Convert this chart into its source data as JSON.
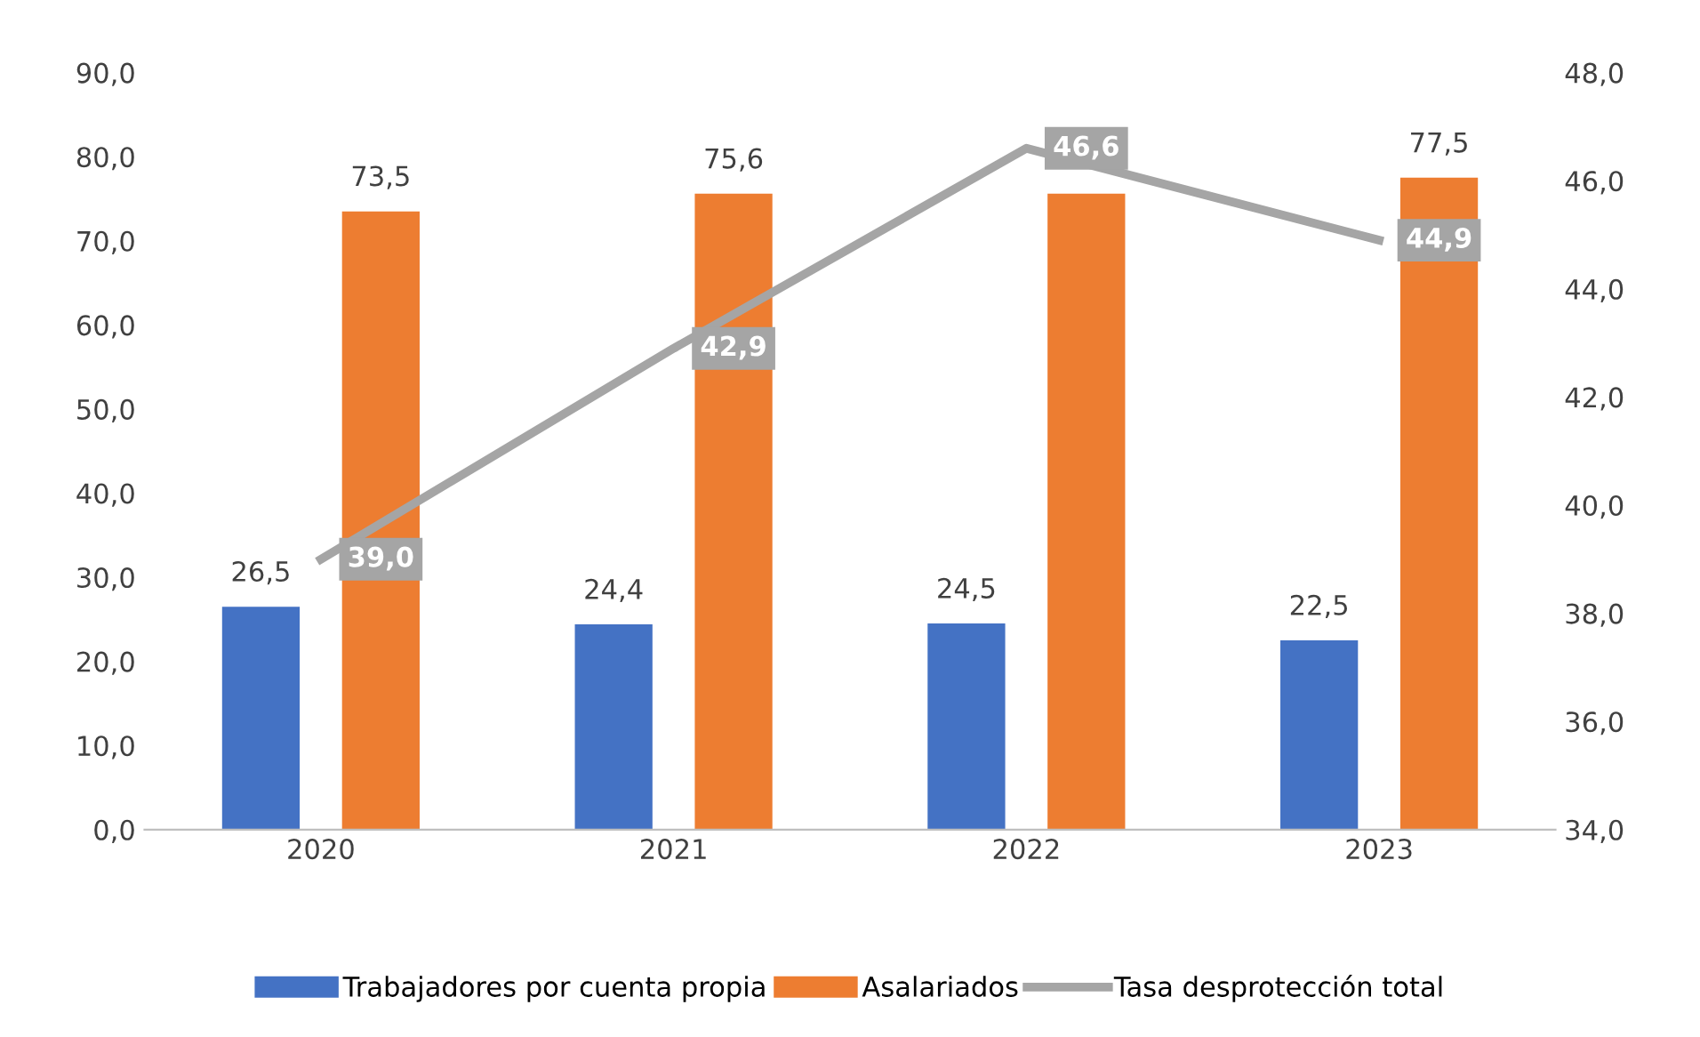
{
  "chart_data": {
    "type": "bar",
    "categories": [
      "2020",
      "2021",
      "2022",
      "2023"
    ],
    "series": [
      {
        "name": "Trabajadores por cuenta propia",
        "color": "#4472c4",
        "values": [
          26.5,
          24.4,
          24.5,
          22.5
        ],
        "value_labels": [
          "26,5",
          "24,4",
          "24,5",
          "22,5"
        ]
      },
      {
        "name": "Asalariados",
        "color": "#ed7d31",
        "values": [
          73.5,
          75.6,
          75.6,
          77.5
        ],
        "value_labels": [
          "73,5",
          "75,6",
          null,
          "77,5"
        ]
      },
      {
        "name": "Tasa desprotección total",
        "type": "line",
        "axis": "y2",
        "color": "#a5a5a5",
        "values": [
          39.0,
          42.9,
          46.6,
          44.9
        ],
        "value_labels": [
          "39,0",
          "42,9",
          "46,6",
          "44,9"
        ]
      }
    ],
    "ylim": [
      0,
      90
    ],
    "yticks": [
      {
        "value": 0,
        "label": "0,0"
      },
      {
        "value": 10,
        "label": "10,0"
      },
      {
        "value": 20,
        "label": "20,0"
      },
      {
        "value": 30,
        "label": "30,0"
      },
      {
        "value": 40,
        "label": "40,0"
      },
      {
        "value": 50,
        "label": "50,0"
      },
      {
        "value": 60,
        "label": "60,0"
      },
      {
        "value": 70,
        "label": "70,0"
      },
      {
        "value": 80,
        "label": "80,0"
      },
      {
        "value": 90,
        "label": "90,0"
      }
    ],
    "y2lim": [
      34,
      48
    ],
    "y2ticks": [
      {
        "value": 34,
        "label": "34,0"
      },
      {
        "value": 36,
        "label": "36,0"
      },
      {
        "value": 38,
        "label": "38,0"
      },
      {
        "value": 40,
        "label": "40,0"
      },
      {
        "value": 42,
        "label": "42,0"
      },
      {
        "value": 44,
        "label": "44,0"
      },
      {
        "value": 46,
        "label": "46,0"
      },
      {
        "value": 48,
        "label": "48,0"
      }
    ],
    "grid": false,
    "legend": "bottom",
    "marker": "none",
    "line_style": "solid"
  }
}
